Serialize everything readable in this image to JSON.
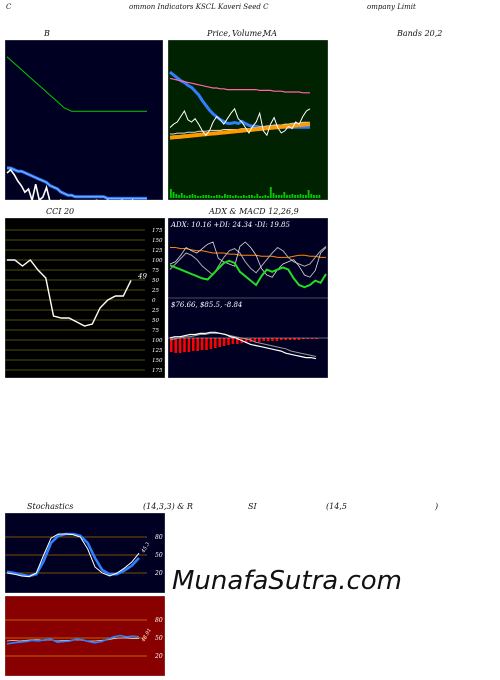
{
  "header": {
    "c1": "C",
    "c2": "ommon  Indicators KSCL  Kaveri  Seed C",
    "c3": "ompany Limit"
  },
  "labels": {
    "bands": "B",
    "price": "Price,",
    "volume": "Volume,",
    "ma": "MA",
    "bands_params": "Bands 20,2",
    "cci": "CCI 20",
    "adx_macd": "ADX  & MACD 12,26,9",
    "stochastics": "Stochastics",
    "stoch_params": "(14,3,3) & R",
    "rsi": "SI",
    "rsi_params": "(14,5",
    "rsi_close": ")"
  },
  "watermark": "MunafaSutra.com",
  "colors": {
    "panel_bg": "#000022",
    "ma_bg": "#002200",
    "stoch_bg": "#880000",
    "grid_olive": "#6b6b00",
    "blue": "#2f7fff",
    "orange": "#ff9900",
    "green": "#00cc00",
    "red": "#ff0000",
    "white": "#ffffff"
  },
  "chart_data": [
    {
      "type": "line",
      "panel": "bollinger",
      "series": [
        {
          "values": [
            45,
            47,
            44,
            40,
            37,
            33,
            35,
            28,
            38,
            28,
            30,
            36,
            27,
            25,
            26,
            28,
            25,
            20,
            26,
            23,
            24,
            25,
            26,
            25,
            27,
            28,
            27,
            26,
            28,
            27,
            26,
            27,
            28,
            27,
            26,
            28,
            25,
            21,
            22,
            20
          ]
        },
        {
          "values": [
            45,
            45,
            44,
            43,
            43,
            42,
            41,
            40,
            39,
            38,
            37,
            36,
            34,
            33,
            32,
            30,
            29,
            28,
            28,
            27,
            27,
            27,
            27,
            27,
            27,
            27,
            27,
            27,
            26,
            26,
            26,
            26,
            26,
            26,
            26,
            26,
            26,
            26,
            26,
            26
          ]
        },
        {
          "values": [
            72,
            70,
            68,
            66,
            64,
            62,
            60,
            58,
            56,
            54,
            52,
            50,
            48,
            46,
            44,
            42,
            40,
            39,
            38,
            38,
            38,
            38,
            38,
            38,
            38,
            38,
            38,
            38,
            38,
            38,
            38,
            38,
            38,
            38,
            38,
            38,
            38,
            38,
            38,
            38
          ]
        },
        {
          "values": [
            18,
            18,
            19,
            19,
            19,
            20,
            20,
            20,
            19,
            18,
            17,
            16,
            15,
            14,
            13,
            12,
            12,
            11,
            12,
            13,
            14,
            15,
            15,
            15,
            15,
            15,
            15,
            15,
            15,
            15,
            15,
            15,
            15,
            16,
            16,
            16,
            16,
            16,
            16,
            16
          ]
        }
      ]
    },
    {
      "type": "line",
      "panel": "price-ma",
      "series": [
        {
          "values": [
            82,
            79,
            76,
            73,
            71,
            68,
            66,
            62,
            58,
            52,
            47,
            42,
            38,
            35,
            32,
            30,
            28,
            28,
            29,
            28,
            30,
            28,
            26,
            25,
            25,
            24,
            24,
            24,
            24,
            24,
            24,
            24,
            24,
            24,
            24,
            24,
            24,
            24,
            24,
            24
          ]
        },
        {
          "values": [
            20,
            20,
            21,
            21,
            21,
            22,
            22,
            22,
            23,
            23,
            23,
            24,
            24,
            24,
            24,
            25,
            25,
            25,
            25,
            25,
            26,
            26,
            26,
            27,
            27,
            28,
            28,
            29,
            29,
            30,
            30,
            30,
            31,
            31,
            32,
            32,
            32,
            33,
            33,
            33
          ]
        },
        {
          "values": [
            18,
            19,
            20,
            21,
            22,
            23,
            24,
            25,
            26,
            27,
            28,
            29,
            30,
            31,
            32,
            33,
            34,
            35,
            36,
            37,
            38,
            39,
            40,
            41,
            42,
            43,
            44,
            45,
            46,
            47,
            48,
            49,
            50,
            51,
            52,
            53,
            54,
            55,
            56,
            57
          ]
        },
        {
          "values": [
            77,
            76,
            75,
            74,
            73,
            72,
            71,
            70,
            69,
            68,
            67,
            66,
            65,
            65,
            64,
            64,
            63,
            63,
            63,
            63,
            63,
            63,
            63,
            63,
            63,
            62,
            62,
            62,
            62,
            61,
            61,
            61,
            60,
            60,
            60,
            60,
            60,
            59,
            59,
            59
          ]
        },
        {
          "values": [
            25,
            28,
            30,
            35,
            40,
            32,
            30,
            33,
            28,
            22,
            18,
            22,
            30,
            35,
            32,
            28,
            33,
            38,
            42,
            33,
            30,
            25,
            20,
            26,
            30,
            38,
            22,
            18,
            28,
            34,
            25,
            20,
            22,
            26,
            24,
            30,
            28,
            35,
            40,
            42
          ]
        }
      ]
    },
    {
      "type": "line",
      "panel": "cci",
      "yticks": [
        175,
        150,
        125,
        100,
        75,
        50,
        25,
        0,
        25,
        50,
        75,
        100,
        125,
        150,
        175
      ],
      "series": [
        {
          "values": [
            100,
            100,
            85,
            100,
            75,
            55,
            -40,
            -45,
            -45,
            -55,
            -65,
            -60,
            -20,
            0,
            10,
            10,
            49
          ]
        }
      ],
      "last_label": "49"
    },
    {
      "type": "line",
      "panel": "adx",
      "title": "ADX: 10.16  +DI: 24.34  -DI: 19.85",
      "values": {
        "adx": 10.16,
        "plus_di": 24.34,
        "minus_di": 19.85
      }
    },
    {
      "type": "bar",
      "panel": "macd",
      "title": "  $76.66,  $85.5,  -8.84",
      "values": {
        "macd": 76.66,
        "signal": 85.5,
        "hist": -8.84
      }
    },
    {
      "type": "line",
      "panel": "stochastics",
      "yticks": [
        80,
        50,
        20
      ],
      "series": [
        {
          "values": [
            20,
            18,
            15,
            14,
            20,
            50,
            78,
            85,
            85,
            84,
            80,
            60,
            30,
            20,
            15,
            20,
            28,
            38,
            53
          ]
        },
        {
          "values": [
            22,
            20,
            17,
            15,
            18,
            40,
            70,
            82,
            85,
            85,
            82,
            70,
            45,
            25,
            18,
            18,
            24,
            32,
            45
          ]
        }
      ],
      "last_label": "45.3"
    },
    {
      "type": "line",
      "panel": "rsi",
      "yticks": [
        80,
        50,
        20
      ],
      "series": [
        {
          "values": [
            40,
            42,
            43,
            44,
            46,
            45,
            47,
            48,
            43,
            44,
            45,
            48,
            47,
            44,
            42,
            44,
            48,
            52,
            54,
            52,
            53,
            52
          ]
        },
        {
          "values": [
            45,
            46,
            45,
            46,
            47,
            47,
            46,
            47,
            45,
            46,
            46,
            47,
            46,
            45,
            45,
            46,
            47,
            49,
            50,
            50,
            49,
            49
          ]
        }
      ],
      "last_label": "48.91"
    }
  ]
}
